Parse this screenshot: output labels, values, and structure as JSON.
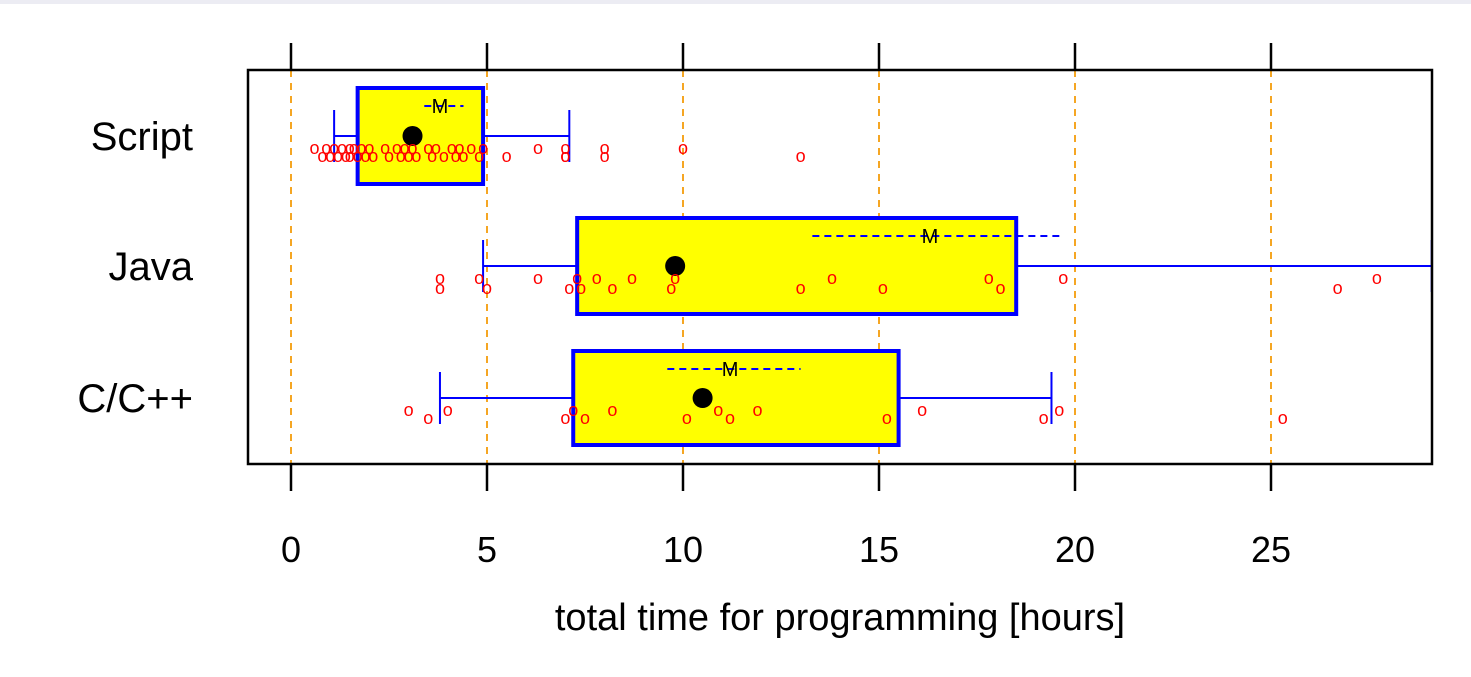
{
  "chart_data": {
    "type": "boxplot",
    "title": "",
    "xlabel": "total time for programming [hours]",
    "ylabel": "",
    "xlim": [
      -1.1,
      29.1
    ],
    "xticks": [
      0,
      5,
      10,
      15,
      20,
      25
    ],
    "grid": {
      "vertical": true,
      "color": "#f5a623",
      "style": "dashed"
    },
    "point_symbol": "o",
    "mean_symbol": "M",
    "colors": {
      "box_fill": "#ffff00",
      "box_border": "#0000ff",
      "whisker": "#0000ff",
      "points": "#ff0000",
      "median": "#000000",
      "grid": "#f5a623"
    },
    "groups": [
      {
        "name": "Script",
        "whisker_low": 1.1,
        "q1": 1.7,
        "median": 3.1,
        "q3": 4.9,
        "whisker_high": 7.1,
        "mean": 3.8,
        "mean_band": [
          3.4,
          4.4
        ],
        "points": [
          0.6,
          0.8,
          0.9,
          1.0,
          1.1,
          1.2,
          1.3,
          1.4,
          1.5,
          1.5,
          1.6,
          1.7,
          1.8,
          1.9,
          2.0,
          2.1,
          2.4,
          2.5,
          2.7,
          2.8,
          2.9,
          3.0,
          3.1,
          3.2,
          3.5,
          3.6,
          3.7,
          3.9,
          4.1,
          4.2,
          4.3,
          4.4,
          4.6,
          4.8,
          4.9,
          5.5,
          6.3,
          7.0,
          7.0,
          7.0,
          8.0,
          8.0,
          10.0,
          13.0
        ]
      },
      {
        "name": "Java",
        "whisker_low": 4.9,
        "q1": 7.3,
        "median": 9.8,
        "q3": 18.5,
        "whisker_high": 29.1,
        "mean": 16.3,
        "mean_band": [
          13.3,
          19.6
        ],
        "points": [
          3.8,
          3.8,
          4.8,
          5.0,
          6.3,
          7.1,
          7.3,
          7.4,
          7.8,
          8.2,
          8.7,
          9.7,
          9.8,
          13.0,
          13.8,
          15.1,
          17.8,
          18.1,
          19.7,
          26.7,
          27.7
        ]
      },
      {
        "name": "C/C++",
        "whisker_low": 3.8,
        "q1": 7.2,
        "median": 10.5,
        "q3": 15.5,
        "whisker_high": 19.4,
        "mean": 11.2,
        "mean_band": [
          9.6,
          13.0
        ],
        "points": [
          3.0,
          3.5,
          4.0,
          7.0,
          7.2,
          7.5,
          8.2,
          10.1,
          10.9,
          11.2,
          11.9,
          15.2,
          16.1,
          19.2,
          19.6,
          25.3
        ]
      }
    ]
  }
}
